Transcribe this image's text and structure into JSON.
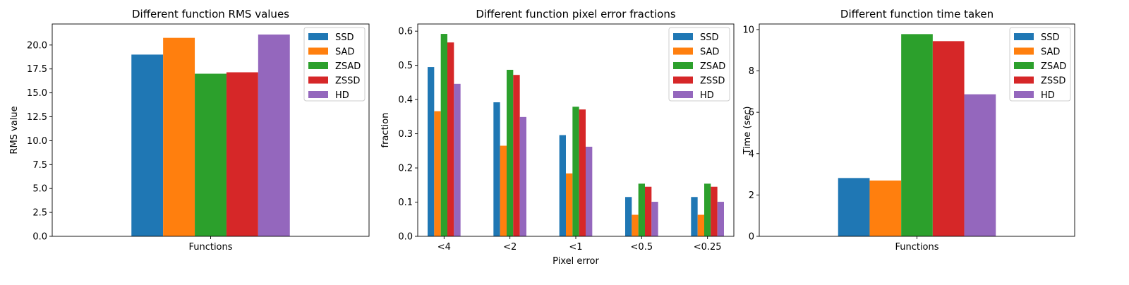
{
  "chart_data": [
    {
      "type": "bar",
      "title": "Different function RMS values",
      "xlabel": "",
      "ylabel": "RMS value",
      "categories": [
        "Functions"
      ],
      "series": [
        {
          "name": "SSD",
          "values": [
            19.0
          ],
          "color": "#1f77b4"
        },
        {
          "name": "SAD",
          "values": [
            20.75
          ],
          "color": "#ff7f0e"
        },
        {
          "name": "ZSAD",
          "values": [
            17.0
          ],
          "color": "#2ca02c"
        },
        {
          "name": "ZSSD",
          "values": [
            17.15
          ],
          "color": "#d62728"
        },
        {
          "name": "HD",
          "values": [
            21.1
          ],
          "color": "#9467bd"
        }
      ],
      "ylim": [
        0,
        22.2
      ],
      "yticks": [
        0,
        2.5,
        5,
        7.5,
        10,
        12.5,
        15,
        17.5,
        20
      ],
      "ytick_labels": [
        "0.0",
        "2.5",
        "5.0",
        "7.5",
        "10.0",
        "12.5",
        "15.0",
        "17.5",
        "20.0"
      ],
      "legend": "top-right",
      "bar_group_fraction": 0.5
    },
    {
      "type": "bar",
      "title": "Different function pixel error fractions",
      "xlabel": "Pixel error",
      "ylabel": "fraction",
      "categories": [
        "<4",
        "<2",
        "<1",
        "<0.5",
        "<0.25"
      ],
      "series": [
        {
          "name": "SSD",
          "values": [
            0.495,
            0.392,
            0.296,
            0.115,
            0.115
          ],
          "color": "#1f77b4"
        },
        {
          "name": "SAD",
          "values": [
            0.366,
            0.265,
            0.184,
            0.063,
            0.063
          ],
          "color": "#ff7f0e"
        },
        {
          "name": "ZSAD",
          "values": [
            0.592,
            0.487,
            0.379,
            0.154,
            0.154
          ],
          "color": "#2ca02c"
        },
        {
          "name": "ZSSD",
          "values": [
            0.567,
            0.472,
            0.371,
            0.145,
            0.145
          ],
          "color": "#d62728"
        },
        {
          "name": "HD",
          "values": [
            0.446,
            0.349,
            0.262,
            0.101,
            0.101
          ],
          "color": "#9467bd"
        }
      ],
      "ylim": [
        0,
        0.621
      ],
      "yticks": [
        0,
        0.1,
        0.2,
        0.3,
        0.4,
        0.5,
        0.6
      ],
      "ytick_labels": [
        "0.0",
        "0.1",
        "0.2",
        "0.3",
        "0.4",
        "0.5",
        "0.6"
      ],
      "legend": "top-right",
      "bar_group_fraction": 0.5
    },
    {
      "type": "bar",
      "title": "Different function time taken",
      "xlabel": "",
      "ylabel": "Time (sec)",
      "categories": [
        "Functions"
      ],
      "series": [
        {
          "name": "SSD",
          "values": [
            2.82
          ],
          "color": "#1f77b4"
        },
        {
          "name": "SAD",
          "values": [
            2.7
          ],
          "color": "#ff7f0e"
        },
        {
          "name": "ZSAD",
          "values": [
            9.78
          ],
          "color": "#2ca02c"
        },
        {
          "name": "ZSSD",
          "values": [
            9.44
          ],
          "color": "#d62728"
        },
        {
          "name": "HD",
          "values": [
            6.87
          ],
          "color": "#9467bd"
        }
      ],
      "ylim": [
        0,
        10.27
      ],
      "yticks": [
        0,
        2,
        4,
        6,
        8,
        10
      ],
      "ytick_labels": [
        "0",
        "2",
        "4",
        "6",
        "8",
        "10"
      ],
      "legend": "top-right",
      "bar_group_fraction": 0.5
    }
  ]
}
